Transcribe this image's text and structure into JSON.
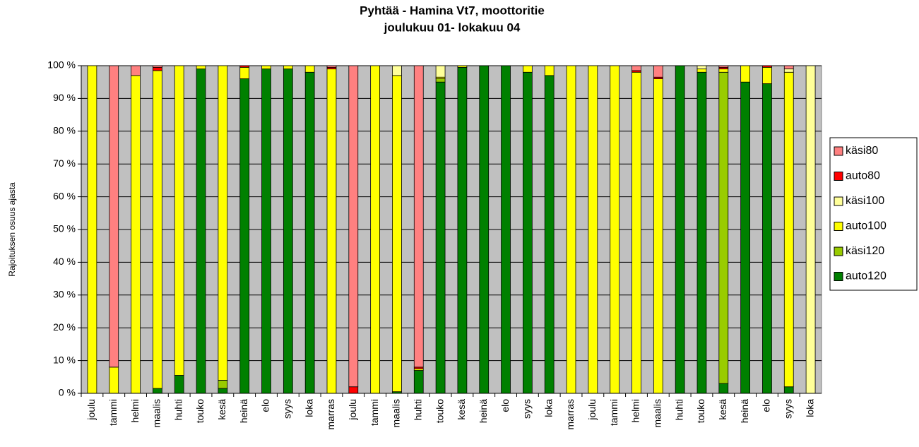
{
  "chart_data": {
    "type": "stacked-bar",
    "title": [
      "Pyhtää - Hamina Vt7, moottoritie",
      "joulukuu 01- lokakuu 04"
    ],
    "y_label": "Rajoituksen osuus ajasta",
    "categories": [
      "joulu",
      "tammi",
      "helmi",
      "maalis",
      "huhti",
      "touko",
      "kesä",
      "heinä",
      "elo",
      "syys",
      "loka",
      "marras",
      "joulu",
      "tammi",
      "maalis",
      "huhti",
      "touko",
      "kesä",
      "heinä",
      "elo",
      "syys",
      "loka",
      "marras",
      "joulu",
      "tammi",
      "helmi",
      "maalis",
      "huhti",
      "touko",
      "kesä",
      "heinä",
      "elo",
      "syys",
      "loka"
    ],
    "series": [
      {
        "name": "auto120",
        "color": "#008000",
        "values": [
          0,
          0,
          0,
          1.5,
          5.5,
          99,
          1.5,
          96,
          99,
          99,
          98,
          0,
          0,
          0,
          0.5,
          7,
          95,
          99.5,
          100,
          100,
          98,
          97,
          0,
          0,
          0,
          0,
          0,
          100,
          98,
          3,
          95,
          94.5,
          2,
          0
        ]
      },
      {
        "name": "käsi120",
        "color": "#99cc00",
        "values": [
          0,
          0,
          0,
          0,
          0,
          0,
          2.5,
          0,
          0,
          0,
          0,
          0,
          0,
          0,
          0,
          0,
          1,
          0,
          0,
          0,
          0,
          0,
          0,
          0,
          0,
          0,
          0,
          0,
          0,
          95,
          0,
          0,
          0,
          0
        ]
      },
      {
        "name": "auto100",
        "color": "#ffff00",
        "values": [
          100,
          8,
          97,
          97,
          94.5,
          1,
          96,
          3.5,
          1,
          1,
          2,
          99,
          0,
          100,
          96.5,
          0.5,
          0.5,
          0.5,
          0,
          0,
          2,
          3,
          100,
          100,
          100,
          98,
          96,
          0,
          1,
          1,
          5,
          5,
          96,
          0
        ]
      },
      {
        "name": "käsi100",
        "color": "#ffff99",
        "values": [
          0,
          0,
          0,
          0,
          0,
          0,
          0,
          0,
          0,
          0,
          0,
          0,
          0,
          0,
          3,
          0,
          3.5,
          0,
          0,
          0,
          0,
          0,
          0,
          0,
          0,
          0,
          0,
          0,
          1,
          0,
          0,
          0,
          1,
          100
        ]
      },
      {
        "name": "auto80",
        "color": "#ff0000",
        "values": [
          0,
          0,
          0,
          1,
          0,
          0,
          0,
          0.5,
          0,
          0,
          0,
          0.5,
          2,
          0,
          0,
          0.5,
          0,
          0,
          0,
          0,
          0,
          0,
          0,
          0,
          0,
          0.5,
          0.5,
          0,
          0,
          0.5,
          0,
          0.5,
          0,
          0
        ]
      },
      {
        "name": "käsi80",
        "color": "#ff8080",
        "values": [
          0,
          92,
          3,
          0.5,
          0,
          0,
          0,
          0,
          0,
          0,
          0,
          0.5,
          98,
          0,
          0,
          92,
          0,
          0,
          0,
          0,
          0,
          0,
          0,
          0,
          0,
          1.5,
          3.5,
          0,
          0,
          0.5,
          0,
          0,
          1,
          0
        ]
      }
    ],
    "ylim": [
      0,
      100
    ],
    "yticks": [
      {
        "value": 0,
        "label": "0 %"
      },
      {
        "value": 10,
        "label": "10 %"
      },
      {
        "value": 20,
        "label": "20 %"
      },
      {
        "value": 30,
        "label": "30 %"
      },
      {
        "value": 40,
        "label": "40 %"
      },
      {
        "value": 50,
        "label": "50 %"
      },
      {
        "value": 60,
        "label": "60 %"
      },
      {
        "value": 70,
        "label": "70 %"
      },
      {
        "value": 80,
        "label": "80 %"
      },
      {
        "value": 90,
        "label": "90 %"
      },
      {
        "value": 100,
        "label": "100 %"
      }
    ],
    "legend": "right"
  }
}
